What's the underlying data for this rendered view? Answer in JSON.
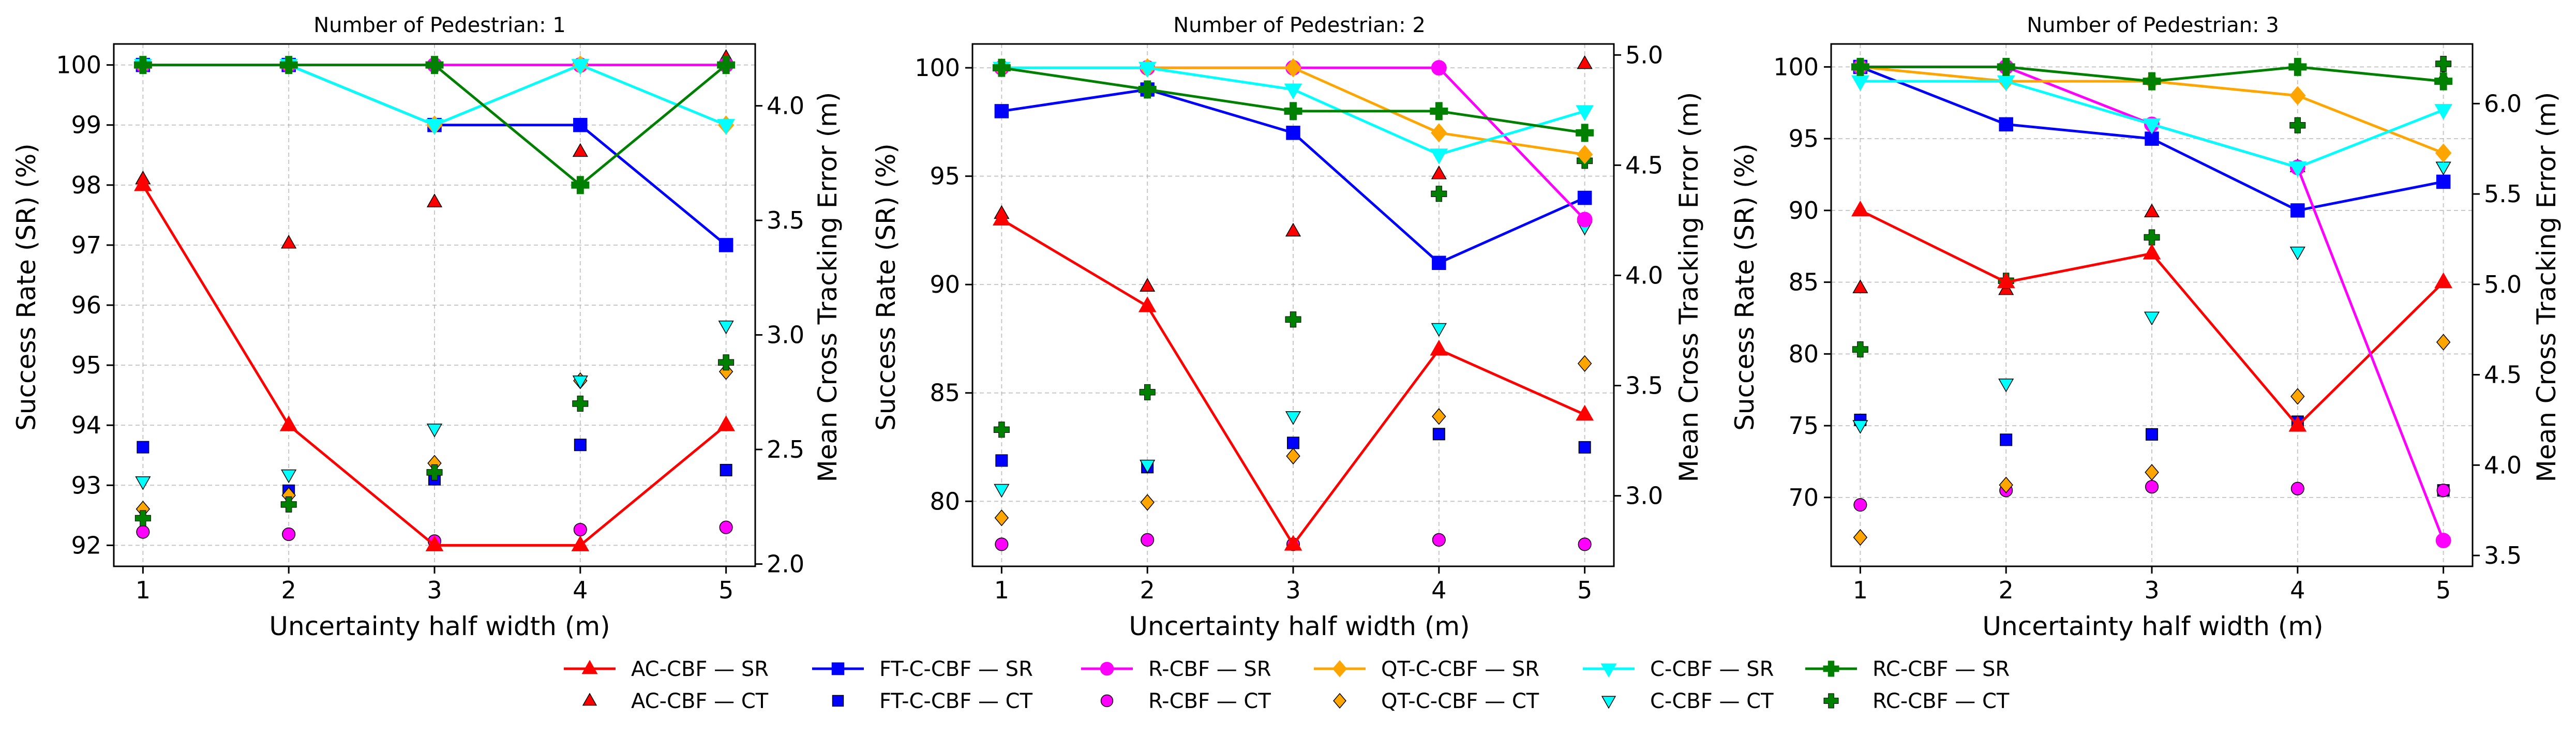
{
  "chart_data": [
    {
      "type": "line",
      "title": "Number of Pedestrian: 1",
      "xlabel": "Uncertainty half width (m)",
      "ylabel": "Success Rate (SR) (%)",
      "y2label": "Mean Cross Tracking Error (m)",
      "x": [
        1,
        2,
        3,
        4,
        5
      ],
      "xticks": [
        "1",
        "2",
        "3",
        "4",
        "5"
      ],
      "xlim": [
        0.8,
        5.2
      ],
      "ylim": [
        91.65,
        100.35
      ],
      "yticks": [
        92,
        93,
        94,
        95,
        96,
        97,
        98,
        99,
        100
      ],
      "ytick_labels": [
        "92",
        "93",
        "94",
        "95",
        "96",
        "97",
        "98",
        "99",
        "100"
      ],
      "y2lim": [
        1.99,
        4.27
      ],
      "y2ticks": [
        2.0,
        2.5,
        3.0,
        3.5,
        4.0
      ],
      "y2tick_labels": [
        "2.0",
        "2.5",
        "3.0",
        "3.5",
        "4.0"
      ],
      "series": [
        {
          "name": "AC-CBF",
          "sr": [
            98,
            94,
            92,
            92,
            94
          ],
          "ct": [
            3.68,
            3.4,
            3.58,
            3.8,
            4.21
          ]
        },
        {
          "name": "FT-C-CBF",
          "sr": [
            100,
            100,
            99,
            99,
            97
          ],
          "ct": [
            2.51,
            2.32,
            2.37,
            2.52,
            2.41
          ]
        },
        {
          "name": "R-CBF",
          "sr": [
            100,
            100,
            100,
            100,
            100
          ],
          "ct": [
            2.14,
            2.13,
            2.1,
            2.15,
            2.16
          ]
        },
        {
          "name": "QT-C-CBF",
          "sr": [
            100,
            100,
            99,
            100,
            99
          ],
          "ct": [
            2.24,
            2.3,
            2.44,
            2.8,
            2.84
          ]
        },
        {
          "name": "C-CBF",
          "sr": [
            100,
            100,
            99,
            100,
            99
          ],
          "ct": [
            2.36,
            2.39,
            2.59,
            2.8,
            3.04
          ]
        },
        {
          "name": "RC-CBF",
          "sr": [
            100,
            100,
            100,
            98,
            100
          ],
          "ct": [
            2.2,
            2.26,
            2.4,
            2.7,
            2.88
          ]
        }
      ]
    },
    {
      "type": "line",
      "title": "Number of Pedestrian: 2",
      "xlabel": "Uncertainty half width (m)",
      "ylabel": "Success Rate (SR) (%)",
      "y2label": "Mean Cross Tracking Error (m)",
      "x": [
        1,
        2,
        3,
        4,
        5
      ],
      "xticks": [
        "1",
        "2",
        "3",
        "4",
        "5"
      ],
      "xlim": [
        0.8,
        5.2
      ],
      "ylim": [
        77.0,
        101.1
      ],
      "yticks": [
        80,
        85,
        90,
        95,
        100
      ],
      "ytick_labels": [
        "80",
        "85",
        "90",
        "95",
        "100"
      ],
      "y2lim": [
        2.68,
        5.05
      ],
      "y2ticks": [
        3.0,
        3.5,
        4.0,
        4.5,
        5.0
      ],
      "y2tick_labels": [
        "3.0",
        "3.5",
        "4.0",
        "4.5",
        "5.0"
      ],
      "series": [
        {
          "name": "AC-CBF",
          "sr": [
            93,
            89,
            78,
            87,
            84
          ],
          "ct": [
            4.28,
            3.95,
            4.2,
            4.46,
            4.96
          ]
        },
        {
          "name": "FT-C-CBF",
          "sr": [
            98,
            99,
            97,
            91,
            94
          ],
          "ct": [
            3.16,
            3.13,
            3.24,
            3.28,
            3.22
          ]
        },
        {
          "name": "R-CBF",
          "sr": [
            100,
            100,
            100,
            100,
            93
          ],
          "ct": [
            2.78,
            2.8,
            2.78,
            2.8,
            2.78
          ]
        },
        {
          "name": "QT-C-CBF",
          "sr": [
            100,
            100,
            100,
            97,
            96
          ],
          "ct": [
            2.9,
            2.97,
            3.18,
            3.36,
            3.6
          ]
        },
        {
          "name": "C-CBF",
          "sr": [
            100,
            100,
            99,
            96,
            98
          ],
          "ct": [
            3.03,
            3.14,
            3.36,
            3.76,
            4.22
          ]
        },
        {
          "name": "RC-CBF",
          "sr": [
            100,
            99,
            98,
            98,
            97
          ],
          "ct": [
            3.3,
            3.47,
            3.8,
            4.37,
            4.52
          ]
        }
      ]
    },
    {
      "type": "line",
      "title": "Number of Pedestrian: 3",
      "xlabel": "Uncertainty half width (m)",
      "ylabel": "Success Rate (SR) (%)",
      "y2label": "Mean Cross Tracking Error (m)",
      "x": [
        1,
        2,
        3,
        4,
        5
      ],
      "xticks": [
        "1",
        "2",
        "3",
        "4",
        "5"
      ],
      "xlim": [
        0.8,
        5.2
      ],
      "ylim": [
        65.2,
        101.6
      ],
      "yticks": [
        70,
        75,
        80,
        85,
        90,
        95,
        100
      ],
      "ytick_labels": [
        "70",
        "75",
        "80",
        "85",
        "90",
        "95",
        "100"
      ],
      "y2lim": [
        3.44,
        6.33
      ],
      "y2ticks": [
        3.5,
        4.0,
        4.5,
        5.0,
        5.5,
        6.0
      ],
      "y2tick_labels": [
        "3.5",
        "4.0",
        "4.5",
        "5.0",
        "5.5",
        "6.0"
      ],
      "series": [
        {
          "name": "AC-CBF",
          "sr": [
            90,
            85,
            87,
            75,
            85
          ],
          "ct": [
            4.98,
            4.97,
            5.4,
            5.65,
            6.14
          ]
        },
        {
          "name": "FT-C-CBF",
          "sr": [
            100,
            96,
            95,
            90,
            92
          ],
          "ct": [
            4.25,
            4.14,
            4.17,
            4.24,
            3.86
          ]
        },
        {
          "name": "R-CBF",
          "sr": [
            100,
            100,
            96,
            93,
            67
          ],
          "ct": [
            3.78,
            3.86,
            3.88,
            3.87,
            3.86
          ]
        },
        {
          "name": "QT-C-CBF",
          "sr": [
            100,
            99,
            99,
            98,
            94
          ],
          "ct": [
            3.6,
            3.89,
            3.96,
            4.38,
            4.68
          ]
        },
        {
          "name": "C-CBF",
          "sr": [
            99,
            99,
            96,
            93,
            97
          ],
          "ct": [
            4.22,
            4.45,
            4.82,
            5.18,
            5.65
          ]
        },
        {
          "name": "RC-CBF",
          "sr": [
            100,
            100,
            99,
            100,
            99
          ],
          "ct": [
            4.64,
            5.02,
            5.26,
            5.88,
            6.22
          ]
        }
      ]
    }
  ],
  "styles": [
    {
      "name": "AC-CBF",
      "color": "#ff0000",
      "marker": "triangle-up"
    },
    {
      "name": "FT-C-CBF",
      "color": "#0000ff",
      "marker": "square"
    },
    {
      "name": "R-CBF",
      "color": "#ff00ff",
      "marker": "circle"
    },
    {
      "name": "QT-C-CBF",
      "color": "#ffa500",
      "marker": "diamond"
    },
    {
      "name": "C-CBF",
      "color": "#00ffff",
      "marker": "triangle-down"
    },
    {
      "name": "RC-CBF",
      "color": "#008000",
      "marker": "plus"
    }
  ],
  "legend": {
    "placement": "bottom-center",
    "entries": [
      {
        "label": "AC-CBF — SR",
        "series": "AC-CBF",
        "kind": "sr"
      },
      {
        "label": "AC-CBF — CT",
        "series": "AC-CBF",
        "kind": "ct"
      },
      {
        "label": "FT-C-CBF — SR",
        "series": "FT-C-CBF",
        "kind": "sr"
      },
      {
        "label": "FT-C-CBF — CT",
        "series": "FT-C-CBF",
        "kind": "ct"
      },
      {
        "label": "R-CBF — SR",
        "series": "R-CBF",
        "kind": "sr"
      },
      {
        "label": "R-CBF — CT",
        "series": "R-CBF",
        "kind": "ct"
      },
      {
        "label": "QT-C-CBF — SR",
        "series": "QT-C-CBF",
        "kind": "sr"
      },
      {
        "label": "QT-C-CBF — CT",
        "series": "QT-C-CBF",
        "kind": "ct"
      },
      {
        "label": "C-CBF — SR",
        "series": "C-CBF",
        "kind": "sr"
      },
      {
        "label": "C-CBF — CT",
        "series": "C-CBF",
        "kind": "ct"
      },
      {
        "label": "RC-CBF — SR",
        "series": "RC-CBF",
        "kind": "sr"
      },
      {
        "label": "RC-CBF — CT",
        "series": "RC-CBF",
        "kind": "ct"
      }
    ]
  }
}
